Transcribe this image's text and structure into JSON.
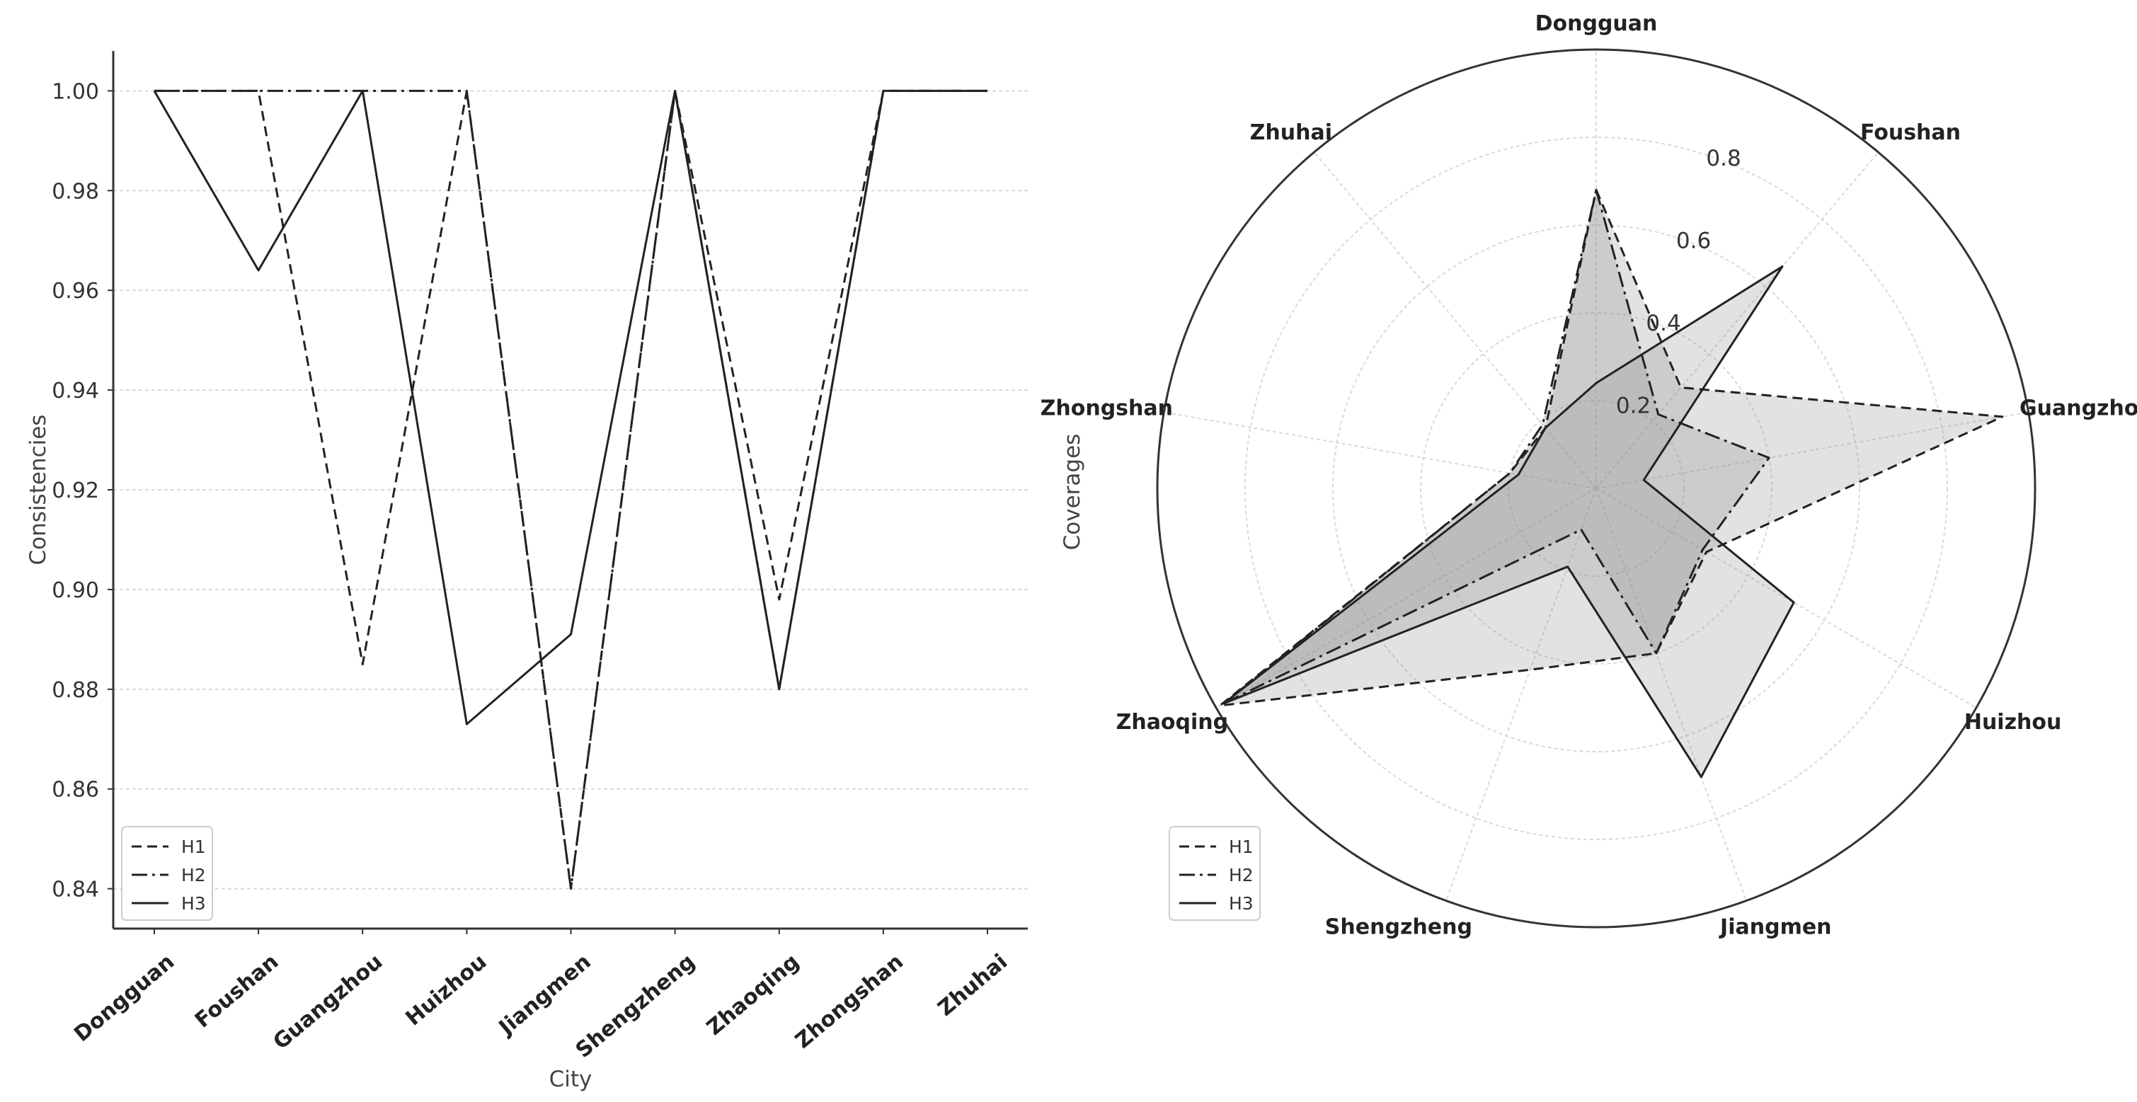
{
  "chart_data": [
    {
      "type": "line",
      "title": "",
      "xlabel": "City",
      "ylabel": "Consistencies",
      "categories": [
        "Dongguan",
        "Foushan",
        "Guangzhou",
        "Huizhou",
        "Jiangmen",
        "Shengzheng",
        "Zhaoqing",
        "Zhongshan",
        "Zhuhai"
      ],
      "ylim": [
        0.832,
        1.008
      ],
      "yticks": [
        0.84,
        0.86,
        0.88,
        0.9,
        0.92,
        0.94,
        0.96,
        0.98,
        1.0
      ],
      "ytick_labels": [
        "0.84",
        "0.86",
        "0.88",
        "0.90",
        "0.92",
        "0.94",
        "0.96",
        "0.98",
        "1.00"
      ],
      "grid": "horizontal",
      "legend_position": "bottom-left",
      "series": [
        {
          "name": "H1",
          "style": "dashed",
          "values": [
            1.0,
            1.0,
            0.885,
            1.0,
            0.84,
            1.0,
            0.898,
            1.0,
            1.0
          ]
        },
        {
          "name": "H2",
          "style": "dashdot",
          "values": [
            1.0,
            1.0,
            1.0,
            1.0,
            0.84,
            1.0,
            0.88,
            1.0,
            1.0
          ]
        },
        {
          "name": "H3",
          "style": "solid",
          "values": [
            1.0,
            0.964,
            1.0,
            0.873,
            0.891,
            1.0,
            0.88,
            1.0,
            1.0
          ]
        }
      ]
    },
    {
      "type": "radar",
      "title": "",
      "ylabel": "Coverages",
      "categories": [
        "Dongguan",
        "Foushan",
        "Guangzhou",
        "Huizhou",
        "Jiangmen",
        "Shengzheng",
        "Zhaoqing",
        "Zhongshan",
        "Zhuhai"
      ],
      "rlim": [
        0,
        1.0
      ],
      "rticks": [
        0.2,
        0.4,
        0.6,
        0.8
      ],
      "rtick_labels": [
        "0.2",
        "0.4",
        "0.6",
        "0.8"
      ],
      "legend_position": "bottom-left",
      "series": [
        {
          "name": "H1",
          "style": "dashed",
          "values": [
            0.68,
            0.3,
            0.94,
            0.29,
            0.4,
            0.44,
            0.99,
            0.2,
            0.18
          ]
        },
        {
          "name": "H2",
          "style": "dashdot",
          "values": [
            0.68,
            0.22,
            0.4,
            0.28,
            0.4,
            0.1,
            0.98,
            0.2,
            0.19
          ]
        },
        {
          "name": "H3",
          "style": "solid",
          "values": [
            0.24,
            0.66,
            0.11,
            0.52,
            0.7,
            0.19,
            0.98,
            0.18,
            0.18
          ]
        }
      ]
    }
  ]
}
